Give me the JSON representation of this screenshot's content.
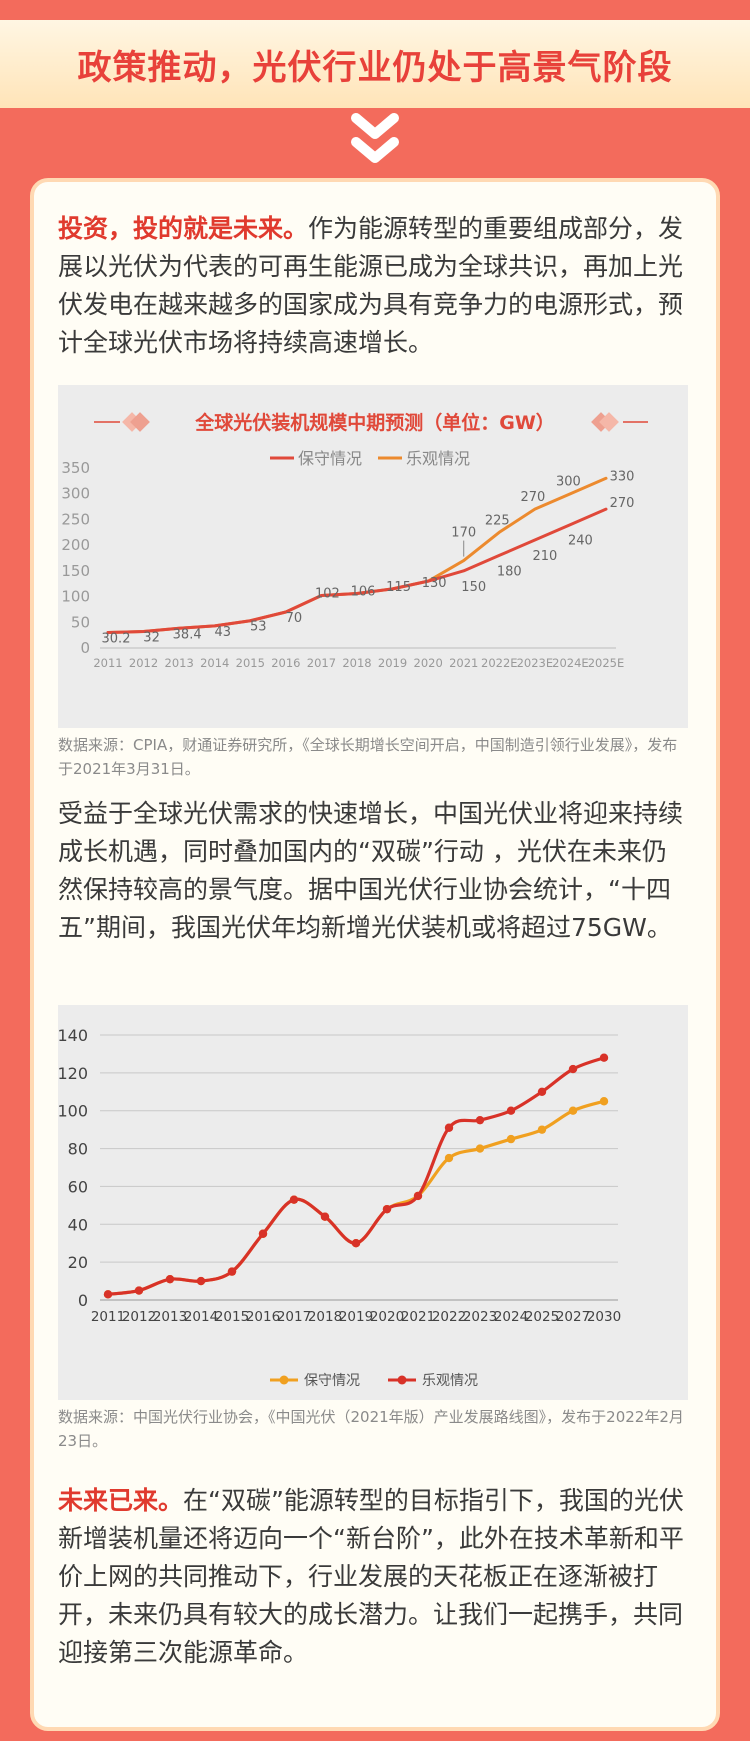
{
  "header": {
    "title": "政策推动，光伏行业仍处于高景气阶段"
  },
  "intro": {
    "highlight": "投资，投的就是未来。",
    "text": "作为能源转型的重要组成部分，发展以光伏为代表的可再生能源已成为全球共识，再加上光伏发电在越来越多的国家成为具有竞争力的电源形式，预计全球光伏市场将持续高速增长。"
  },
  "chart_data": [
    {
      "type": "line",
      "title": "全球光伏装机规模中期预测（单位：GW）",
      "categories": [
        "2011",
        "2012",
        "2013",
        "2014",
        "2015",
        "2016",
        "2017",
        "2018",
        "2019",
        "2020",
        "2021",
        "2022E",
        "2023E",
        "2024E",
        "2025E"
      ],
      "series": [
        {
          "name": "保守情况",
          "color": "#e0493a",
          "values": [
            30.2,
            32,
            38.4,
            43,
            53,
            70,
            102,
            106,
            115,
            130,
            150,
            180,
            210,
            240,
            270
          ]
        },
        {
          "name": "乐观情况",
          "color": "#ec8a2e",
          "values": [
            30.2,
            32,
            38.4,
            43,
            53,
            70,
            102,
            106,
            115,
            130,
            170,
            225,
            270,
            300,
            330
          ]
        }
      ],
      "ylim": [
        0,
        350
      ],
      "yticks": [
        0,
        50,
        100,
        150,
        200,
        250,
        300,
        350
      ],
      "data_labels": [
        {
          "text": "30.2"
        },
        {
          "text": "32"
        },
        {
          "text": "38.4"
        },
        {
          "text": "43"
        },
        {
          "text": "53"
        },
        {
          "text": "70"
        },
        {
          "text": "102"
        },
        {
          "text": "106"
        },
        {
          "text": "115"
        },
        {
          "text": "130"
        },
        {
          "text": "150"
        },
        {
          "text": "180"
        },
        {
          "text": "210"
        },
        {
          "text": "240"
        },
        {
          "text": "270"
        },
        {
          "text": "170"
        },
        {
          "text": "225"
        },
        {
          "text": "270"
        },
        {
          "text": "300"
        },
        {
          "text": "330"
        }
      ],
      "legend": "top"
    },
    {
      "type": "line",
      "title": "",
      "categories": [
        "2011",
        "2012",
        "2013",
        "2014",
        "2015",
        "2016",
        "2017",
        "2018",
        "2019",
        "2020",
        "2021",
        "2022",
        "2023",
        "2024",
        "2025",
        "2027",
        "2030"
      ],
      "series": [
        {
          "name": "保守情况",
          "color": "#f0a020",
          "values": [
            3,
            5,
            11,
            10,
            15,
            35,
            53,
            44,
            30,
            48,
            55,
            75,
            80,
            85,
            90,
            100,
            105
          ]
        },
        {
          "name": "乐观情况",
          "color": "#d83228",
          "values": [
            3,
            5,
            11,
            10,
            15,
            35,
            53,
            44,
            30,
            48,
            55,
            91,
            95,
            100,
            110,
            122,
            128
          ]
        }
      ],
      "ylim": [
        0,
        140
      ],
      "yticks": [
        0,
        20,
        40,
        60,
        80,
        100,
        120,
        140
      ],
      "grid": true,
      "legend": "bottom"
    }
  ],
  "source1": "数据来源：CPIA，财通证券研究所，《全球长期增长空间开启，中国制造引领行业发展》，发布于2021年3月31日。",
  "middle": {
    "text": "受益于全球光伏需求的快速增长，中国光伏业将迎来持续成长机遇，同时叠加国内的“双碳”行动 ，光伏在未来仍然保持较高的景气度。据中国光伏行业协会统计，“十四五”期间，我国光伏年均新增光伏装机或将超过75GW。"
  },
  "source2": "数据来源：中国光伏行业协会，《中国光伏（2021年版）产业发展路线图》，发布于2022年2月23日。",
  "closing": {
    "highlight": "未来已来。",
    "text": "在“双碳”能源转型的目标指引下，我国的光伏新增装机量还将迈向一个“新台阶”，此外在技术革新和平价上网的共同推动下，行业发展的天花板正在逐渐被打开，未来仍具有较大的成长潜力。让我们一起携手，共同迎接第三次能源革命。"
  }
}
